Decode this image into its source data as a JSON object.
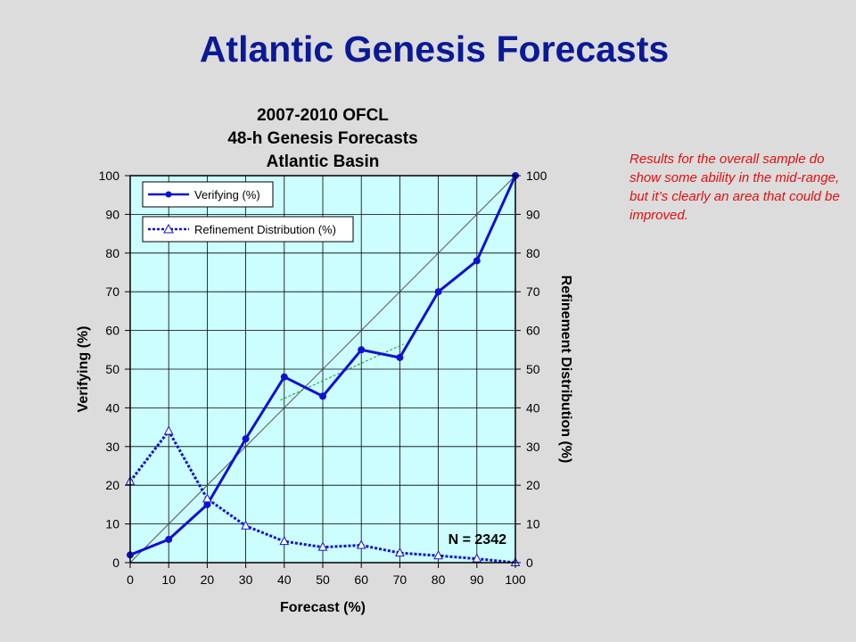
{
  "slide": {
    "title": "Atlantic Genesis Forecasts",
    "note": "Results for the overall sample do show some ability in the mid-range, but it’s clearly an area that could be improved."
  },
  "colors": {
    "title": "#0a1a96",
    "note": "#e01010",
    "plot_background": "#ccfeff",
    "series": "#1010d0",
    "slide_background": "#dcdcdc"
  },
  "chart_data": {
    "type": "line",
    "title": [
      "2007-2010 OFCL",
      "48-h Genesis Forecasts",
      "Atlantic Basin"
    ],
    "xlabel": "Forecast (%)",
    "ylabel": "Verifying (%)",
    "y2label": "Refinement Distribution (%)",
    "xlim": [
      0,
      100
    ],
    "ylim": [
      0,
      100
    ],
    "y2lim": [
      0,
      100
    ],
    "x_ticks": [
      0,
      10,
      20,
      30,
      40,
      50,
      60,
      70,
      80,
      90,
      100
    ],
    "y_ticks": [
      0,
      10,
      20,
      30,
      40,
      50,
      60,
      70,
      80,
      90,
      100
    ],
    "grid": true,
    "legend_position": "top-left",
    "annotation": "N = 2342",
    "reference_line": {
      "x": [
        0,
        100
      ],
      "y": [
        0,
        100
      ]
    },
    "trend_line": {
      "x": [
        39,
        71
      ],
      "y": [
        42,
        56.5
      ]
    },
    "series": [
      {
        "name": "Verifying (%)",
        "axis": "left",
        "marker": "circle",
        "line_style": "solid",
        "x": [
          0,
          10,
          20,
          30,
          40,
          50,
          60,
          70,
          80,
          90,
          100
        ],
        "y": [
          2,
          6,
          15,
          32,
          48,
          43,
          55,
          53,
          70,
          78,
          100
        ]
      },
      {
        "name": "Refinement Distribution (%)",
        "axis": "right",
        "marker": "triangle",
        "line_style": "dotted",
        "x": [
          0,
          10,
          20,
          30,
          40,
          50,
          60,
          70,
          80,
          90,
          100
        ],
        "y": [
          21,
          34,
          16.5,
          9.5,
          5.5,
          4,
          4.5,
          2.5,
          1.8,
          1,
          0
        ]
      }
    ]
  }
}
